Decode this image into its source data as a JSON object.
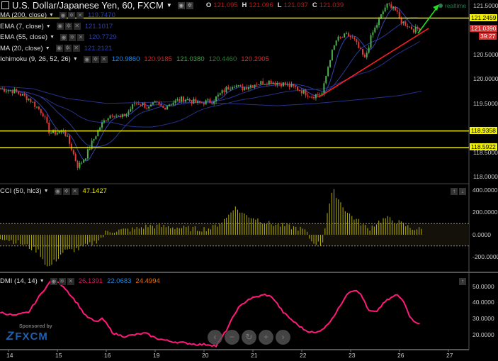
{
  "header": {
    "title": "U.S. Dollar/Japanese Yen, 60, FXCM",
    "ohlc": [
      {
        "k": "O",
        "v": "121.095"
      },
      {
        "k": "H",
        "v": "121.096"
      },
      {
        "k": "L",
        "v": "121.037"
      },
      {
        "k": "C",
        "v": "121.039"
      }
    ]
  },
  "indicators": [
    {
      "label": "MA (200, close)",
      "values": [
        {
          "v": "119.7470",
          "color": "#2b3fa8"
        }
      ]
    },
    {
      "label": "EMA (7, close)",
      "values": [
        {
          "v": "121.1017",
          "color": "#2b3fa8"
        }
      ]
    },
    {
      "label": "EMA (55, close)",
      "values": [
        {
          "v": "120.7729",
          "color": "#2b3fa8"
        }
      ]
    },
    {
      "label": "MA (20, close)",
      "values": [
        {
          "v": "121.2121",
          "color": "#2b3fa8"
        }
      ]
    },
    {
      "label": "Ichimoku (9, 26, 52, 26)",
      "values": [
        {
          "v": "120.9860",
          "color": "#1e88e5"
        },
        {
          "v": "120.9185",
          "color": "#c62828"
        },
        {
          "v": "121.0380",
          "color": "#43a047"
        },
        {
          "v": "120.4460",
          "color": "#2e7d32"
        },
        {
          "v": "120.2905",
          "color": "#d32f2f"
        }
      ]
    }
  ],
  "cci_legend": {
    "label": "CCI (50, hlc3)",
    "value": "47.1427"
  },
  "dmi_legend": {
    "label": "DMI (14, 14)",
    "values": [
      {
        "v": "26.1391",
        "color": "#d81b60"
      },
      {
        "v": "22.0683",
        "color": "#1e88e5"
      },
      {
        "v": "24.4994",
        "color": "#ef6c00"
      }
    ]
  },
  "price_axis": [
    "121.5000",
    "120.5000",
    "120.0000",
    "119.5000",
    "118.5000",
    "118.0000"
  ],
  "price_tags": {
    "levels": [
      "121.2459",
      "118.9358",
      "118.5922"
    ],
    "last": "121.0390",
    "countdown": "39:27"
  },
  "realtime_label": "realtime",
  "cci_axis": [
    "400.0000",
    "200.0000",
    "0.0000",
    "-200.0000"
  ],
  "dmi_axis": [
    "50.0000",
    "40.0000",
    "30.0000",
    "20.0000"
  ],
  "time_axis": [
    "14",
    "15",
    "16",
    "19",
    "20",
    "21",
    "22",
    "23",
    "26",
    "27"
  ],
  "sponsor": {
    "text": "Sponsored by",
    "brand": "FXCM"
  },
  "nav_buttons": [
    "‹",
    "−",
    "↻",
    "+",
    "›"
  ],
  "colors": {
    "up": "#4caf50",
    "down": "#e53935",
    "level": "#e8e800",
    "cci": "#b5b000",
    "dmi": "#ff1a7a",
    "ma": "#2b3fa8"
  },
  "chart_data": [
    {
      "type": "line",
      "title": "USD/JPY 60 price (approx. closes)",
      "x_unit": "trading days from first label",
      "points": [
        [
          -0.17,
          119.8
        ],
        [
          0.12,
          119.75
        ],
        [
          0.41,
          119.6
        ],
        [
          0.7,
          119.3
        ],
        [
          0.84,
          118.9
        ],
        [
          0.99,
          118.9
        ],
        [
          1.13,
          118.95
        ],
        [
          1.28,
          118.6
        ],
        [
          1.42,
          118.2
        ],
        [
          1.57,
          118.4
        ],
        [
          1.71,
          118.7
        ],
        [
          1.86,
          119.0
        ],
        [
          2.0,
          119.2
        ],
        [
          2.14,
          119.3
        ],
        [
          2.29,
          119.2
        ],
        [
          2.43,
          119.3
        ],
        [
          2.58,
          119.5
        ],
        [
          2.72,
          119.5
        ],
        [
          2.87,
          119.4
        ],
        [
          3.01,
          119.5
        ],
        [
          3.16,
          119.4
        ],
        [
          3.3,
          119.5
        ],
        [
          3.59,
          119.6
        ],
        [
          3.88,
          119.5
        ],
        [
          4.17,
          119.55
        ],
        [
          4.46,
          119.8
        ],
        [
          4.61,
          119.9
        ],
        [
          4.75,
          119.8
        ],
        [
          5.04,
          119.9
        ],
        [
          5.33,
          119.95
        ],
        [
          5.62,
          119.9
        ],
        [
          5.91,
          119.8
        ],
        [
          6.2,
          119.65
        ],
        [
          6.42,
          119.7
        ],
        [
          6.57,
          120.4
        ],
        [
          6.71,
          120.8
        ],
        [
          6.93,
          120.9
        ],
        [
          7.07,
          120.8
        ],
        [
          7.29,
          120.4
        ],
        [
          7.43,
          120.9
        ],
        [
          7.58,
          121.2
        ],
        [
          7.72,
          121.5
        ],
        [
          7.87,
          121.5
        ],
        [
          8.01,
          121.2
        ],
        [
          8.16,
          121.1
        ],
        [
          8.3,
          121.0
        ],
        [
          8.41,
          121.04
        ]
      ],
      "ylim": [
        117.9,
        121.62
      ],
      "horizontal_levels": [
        121.2459,
        118.9358,
        118.5922
      ]
    },
    {
      "type": "bar",
      "title": "CCI (50, hlc3)",
      "points": [
        [
          -0.17,
          -20
        ],
        [
          0.26,
          -80
        ],
        [
          0.62,
          -150
        ],
        [
          0.81,
          -300
        ],
        [
          1.13,
          -150
        ],
        [
          1.42,
          -130
        ],
        [
          1.71,
          -80
        ],
        [
          1.93,
          -20
        ],
        [
          2.0,
          30
        ],
        [
          2.29,
          40
        ],
        [
          2.58,
          50
        ],
        [
          2.87,
          80
        ],
        [
          3.3,
          70
        ],
        [
          3.88,
          50
        ],
        [
          4.17,
          60
        ],
        [
          4.46,
          150
        ],
        [
          4.61,
          250
        ],
        [
          4.83,
          180
        ],
        [
          5.04,
          150
        ],
        [
          5.33,
          100
        ],
        [
          5.62,
          80
        ],
        [
          5.91,
          60
        ],
        [
          6.06,
          40
        ],
        [
          6.2,
          -60
        ],
        [
          6.42,
          -90
        ],
        [
          6.52,
          200
        ],
        [
          6.64,
          400
        ],
        [
          6.78,
          300
        ],
        [
          6.93,
          200
        ],
        [
          7.22,
          100
        ],
        [
          7.36,
          50
        ],
        [
          7.51,
          100
        ],
        [
          7.72,
          150
        ],
        [
          7.94,
          120
        ],
        [
          8.23,
          60
        ],
        [
          8.45,
          47
        ]
      ],
      "band": [
        -100,
        100
      ],
      "ylim": [
        -300,
        430
      ]
    },
    {
      "type": "line",
      "title": "DMI (14, 14)",
      "points": [
        [
          -0.17,
          34
        ],
        [
          0.12,
          32
        ],
        [
          0.41,
          34
        ],
        [
          0.7,
          47
        ],
        [
          0.91,
          55
        ],
        [
          1.13,
          50
        ],
        [
          1.42,
          39
        ],
        [
          1.57,
          32
        ],
        [
          1.78,
          28
        ],
        [
          1.93,
          30
        ],
        [
          2.14,
          21
        ],
        [
          2.36,
          19
        ],
        [
          2.58,
          20
        ],
        [
          2.8,
          21
        ],
        [
          3.01,
          18
        ],
        [
          3.3,
          16
        ],
        [
          3.59,
          15
        ],
        [
          3.88,
          14
        ],
        [
          4.1,
          14
        ],
        [
          4.25,
          13
        ],
        [
          4.46,
          23
        ],
        [
          4.68,
          36
        ],
        [
          4.9,
          42
        ],
        [
          5.12,
          44
        ],
        [
          5.26,
          45
        ],
        [
          5.41,
          43
        ],
        [
          5.62,
          34
        ],
        [
          5.84,
          28
        ],
        [
          6.06,
          23
        ],
        [
          6.28,
          21
        ],
        [
          6.49,
          25
        ],
        [
          6.71,
          34
        ],
        [
          6.93,
          46
        ],
        [
          7.07,
          48
        ],
        [
          7.22,
          45
        ],
        [
          7.36,
          35
        ],
        [
          7.51,
          34
        ],
        [
          7.72,
          41
        ],
        [
          7.94,
          45
        ],
        [
          8.09,
          41
        ],
        [
          8.23,
          30
        ],
        [
          8.45,
          26
        ]
      ],
      "ylim": [
        10,
        58
      ]
    }
  ]
}
